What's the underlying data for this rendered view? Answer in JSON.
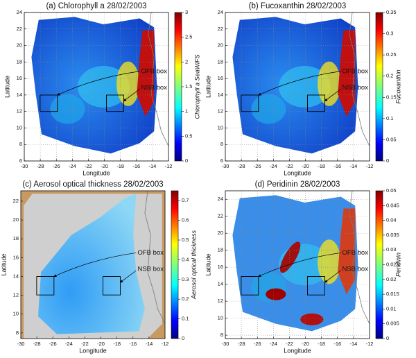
{
  "chart_data": [
    {
      "type": "map",
      "title": "(a) Chlorophyll a 28/02/2003",
      "xlabel": "Longitude",
      "ylabel": "Latitude",
      "xlim": [
        -30,
        -12
      ],
      "xticks": [
        -30,
        -28,
        -26,
        -24,
        -22,
        -20,
        -18,
        -16,
        -14,
        -12
      ],
      "ylim": [
        6,
        24
      ],
      "yticks": [
        6,
        8,
        10,
        12,
        14,
        16,
        18,
        20,
        22,
        24
      ],
      "grid": true,
      "colorbar": {
        "label": "Chlorophyll a SeaWiFS",
        "lim": [
          0,
          3
        ],
        "ticks": [
          0,
          0.5,
          1,
          1.5,
          2,
          2.5,
          3
        ]
      },
      "annotations": [
        "OFB box",
        "NSB box"
      ]
    },
    {
      "type": "map",
      "title": "(b) Fucoxanthin 28/02/2003",
      "xlabel": "Longitude",
      "ylabel": "Latitude",
      "xlim": [
        -30,
        -12
      ],
      "xticks": [
        -30,
        -28,
        -26,
        -24,
        -22,
        -20,
        -18,
        -16,
        -14,
        -12
      ],
      "ylim": [
        6,
        24
      ],
      "yticks": [
        6,
        8,
        10,
        12,
        14,
        16,
        18,
        20,
        22,
        24
      ],
      "grid": true,
      "colorbar": {
        "label": "Fucoxanthin",
        "lim": [
          0,
          0.35
        ],
        "ticks": [
          0,
          0.05,
          0.1,
          0.15,
          0.2,
          0.25,
          0.3,
          0.35
        ]
      },
      "annotations": [
        "OFB box",
        "NSB box"
      ]
    },
    {
      "type": "map",
      "title": "(c) Aerosol optical thickness 28/02/2003",
      "xlabel": "Longitude",
      "ylabel": "Latitude",
      "xlim": [
        -30,
        -12
      ],
      "xticks": [
        -30,
        -28,
        -26,
        -24,
        -22,
        -20,
        -18,
        -16,
        -14,
        -12
      ],
      "ylim": [
        7.4,
        23.1
      ],
      "yticks": [
        8,
        10,
        12,
        14,
        16,
        18,
        20,
        22
      ],
      "grid": false,
      "colorbar": {
        "label": "Aerosol optical thickness",
        "lim": [
          0,
          0.75
        ],
        "ticks": [
          0,
          0.1,
          0.2,
          0.3,
          0.4,
          0.5,
          0.6,
          0.7
        ]
      },
      "annotations": [
        "OFB box",
        "NSB box"
      ]
    },
    {
      "type": "map",
      "title": "(d) Peridinin 28/02/2003",
      "xlabel": "Longitude",
      "ylabel": "Latitude",
      "xlim": [
        -30,
        -12
      ],
      "xticks": [
        -30,
        -28,
        -26,
        -24,
        -22,
        -20,
        -18,
        -16,
        -14,
        -12
      ],
      "ylim": [
        7.6,
        25
      ],
      "yticks": [
        8,
        10,
        12,
        14,
        16,
        18,
        20,
        22,
        24
      ],
      "grid": true,
      "colorbar": {
        "label": "Peridinin",
        "lim": [
          0,
          0.05
        ],
        "ticks": [
          0,
          0.005,
          0.01,
          0.015,
          0.02,
          0.025,
          0.03,
          0.035,
          0.04,
          0.045,
          0.05
        ]
      },
      "annotations": [
        "OFB box",
        "NSB box"
      ]
    }
  ]
}
